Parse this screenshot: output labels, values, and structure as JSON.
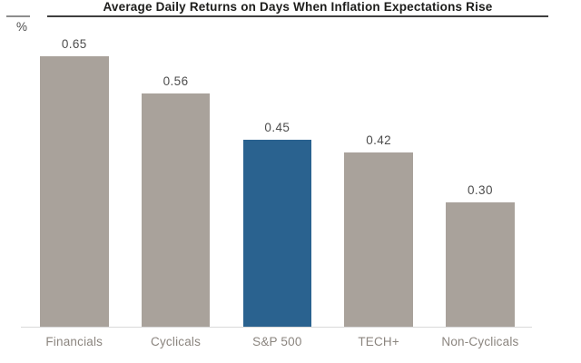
{
  "chart_data": {
    "type": "bar",
    "title": "Average Daily Returns on Days When Inflation Expectations Rise",
    "unit_label": "%",
    "categories": [
      "Financials",
      "Cyclicals",
      "S&P 500",
      "TECH+",
      "Non-Cyclicals"
    ],
    "values": [
      0.65,
      0.56,
      0.45,
      0.42,
      0.3
    ],
    "value_labels": [
      "0.65",
      "0.56",
      "0.45",
      "0.42",
      "0.30"
    ],
    "highlight_index": 2,
    "highlighted_category": "S&P 500",
    "ylim": [
      0,
      0.7
    ],
    "grid": false,
    "legend": "none",
    "colors": {
      "bar_default": "#a9a29b",
      "bar_highlight": "#2a628f",
      "title_text": "#1d1d1b",
      "title_rule": "#3f3f3f",
      "tick_rule": "#8d8d8d",
      "value_label_text": "#4d4d4d",
      "category_label_text": "#8b857f",
      "baseline": "#d9d9d9"
    }
  }
}
